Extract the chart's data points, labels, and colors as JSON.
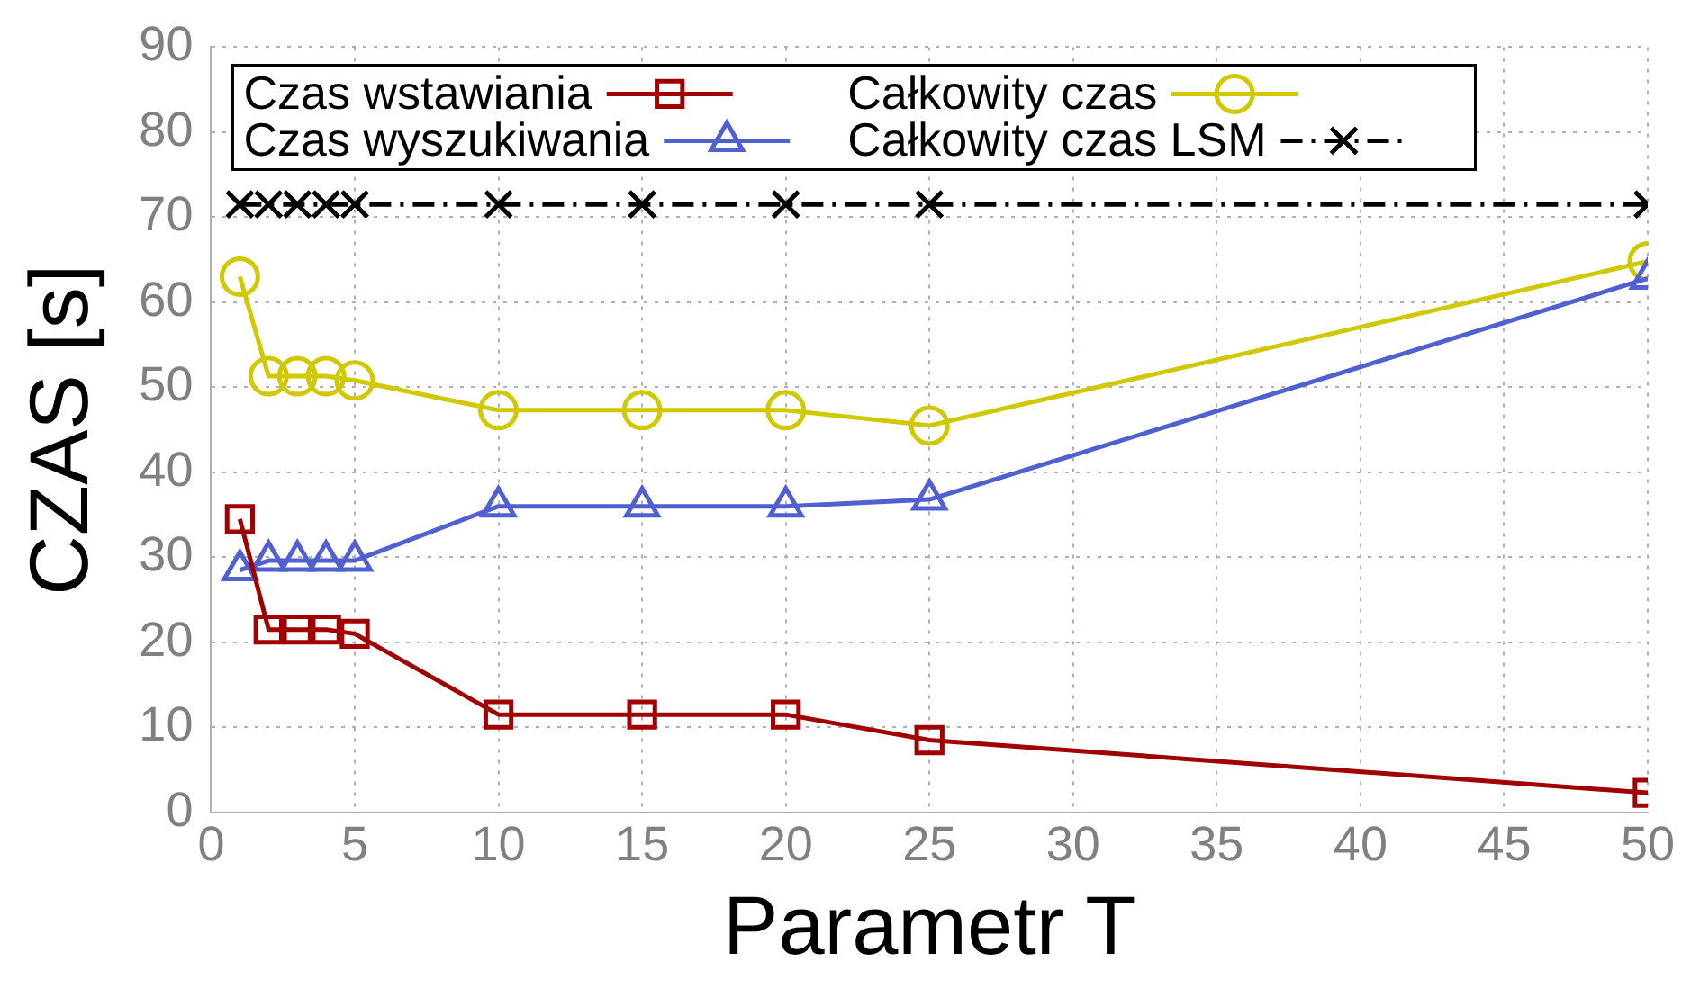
{
  "chart_data": {
    "type": "line",
    "xlabel": "Parametr T",
    "ylabel": "CZAS [s]",
    "x": [
      1,
      2,
      3,
      4,
      5,
      10,
      15,
      20,
      25,
      50
    ],
    "xlim": [
      0,
      50
    ],
    "xticks": [
      0,
      5,
      10,
      15,
      20,
      25,
      30,
      35,
      40,
      45,
      50
    ],
    "ylim": [
      0,
      90
    ],
    "yticks": [
      0,
      10,
      20,
      30,
      40,
      50,
      60,
      70,
      80,
      90
    ],
    "grid": true,
    "legend": "top left",
    "series": [
      {
        "name": "Czas wstawiania",
        "color": "#a00000",
        "marker": "square",
        "line_style": "solid",
        "values": [
          34.5,
          21.5,
          21.5,
          21.5,
          21,
          11.5,
          11.5,
          11.5,
          8.5,
          2.3
        ]
      },
      {
        "name": "Czas wyszukiwania",
        "color": "#5060d0",
        "marker": "triangle",
        "line_style": "solid",
        "values": [
          28.5,
          29.6,
          29.6,
          29.6,
          29.6,
          36,
          36,
          36,
          36.8,
          62.8
        ]
      },
      {
        "name": "Całkowity czas",
        "color": "#d0c800",
        "marker": "circle",
        "line_style": "solid",
        "values": [
          63,
          51.3,
          51.3,
          51.3,
          50.8,
          47.3,
          47.3,
          47.3,
          45.5,
          64.8
        ]
      },
      {
        "name": "Całkowity czas LSM",
        "color": "#000000",
        "marker": "cross",
        "line_style": "dashdot",
        "values": [
          71.5,
          71.5,
          71.5,
          71.5,
          71.5,
          71.5,
          71.5,
          71.5,
          71.5,
          71.5
        ]
      }
    ]
  }
}
